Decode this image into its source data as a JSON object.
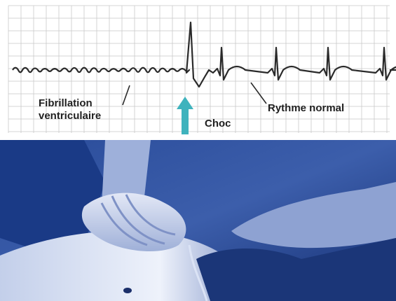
{
  "ecg": {
    "label_fibrillation_line1": "Fibrillation",
    "label_fibrillation_line2": "ventriculaire",
    "label_shock": "Choc",
    "label_normal_rhythm": "Rythme normal",
    "colors": {
      "grid": "#c9c9c9",
      "trace": "#2a2a2a",
      "arrow": "#3fb3bd"
    }
  },
  "photo": {
    "depicts": "cpr-chest-compressions",
    "colors": {
      "background": "#1f3f8a",
      "light": "#cfd8ef",
      "dark": "#0f1f55"
    }
  }
}
